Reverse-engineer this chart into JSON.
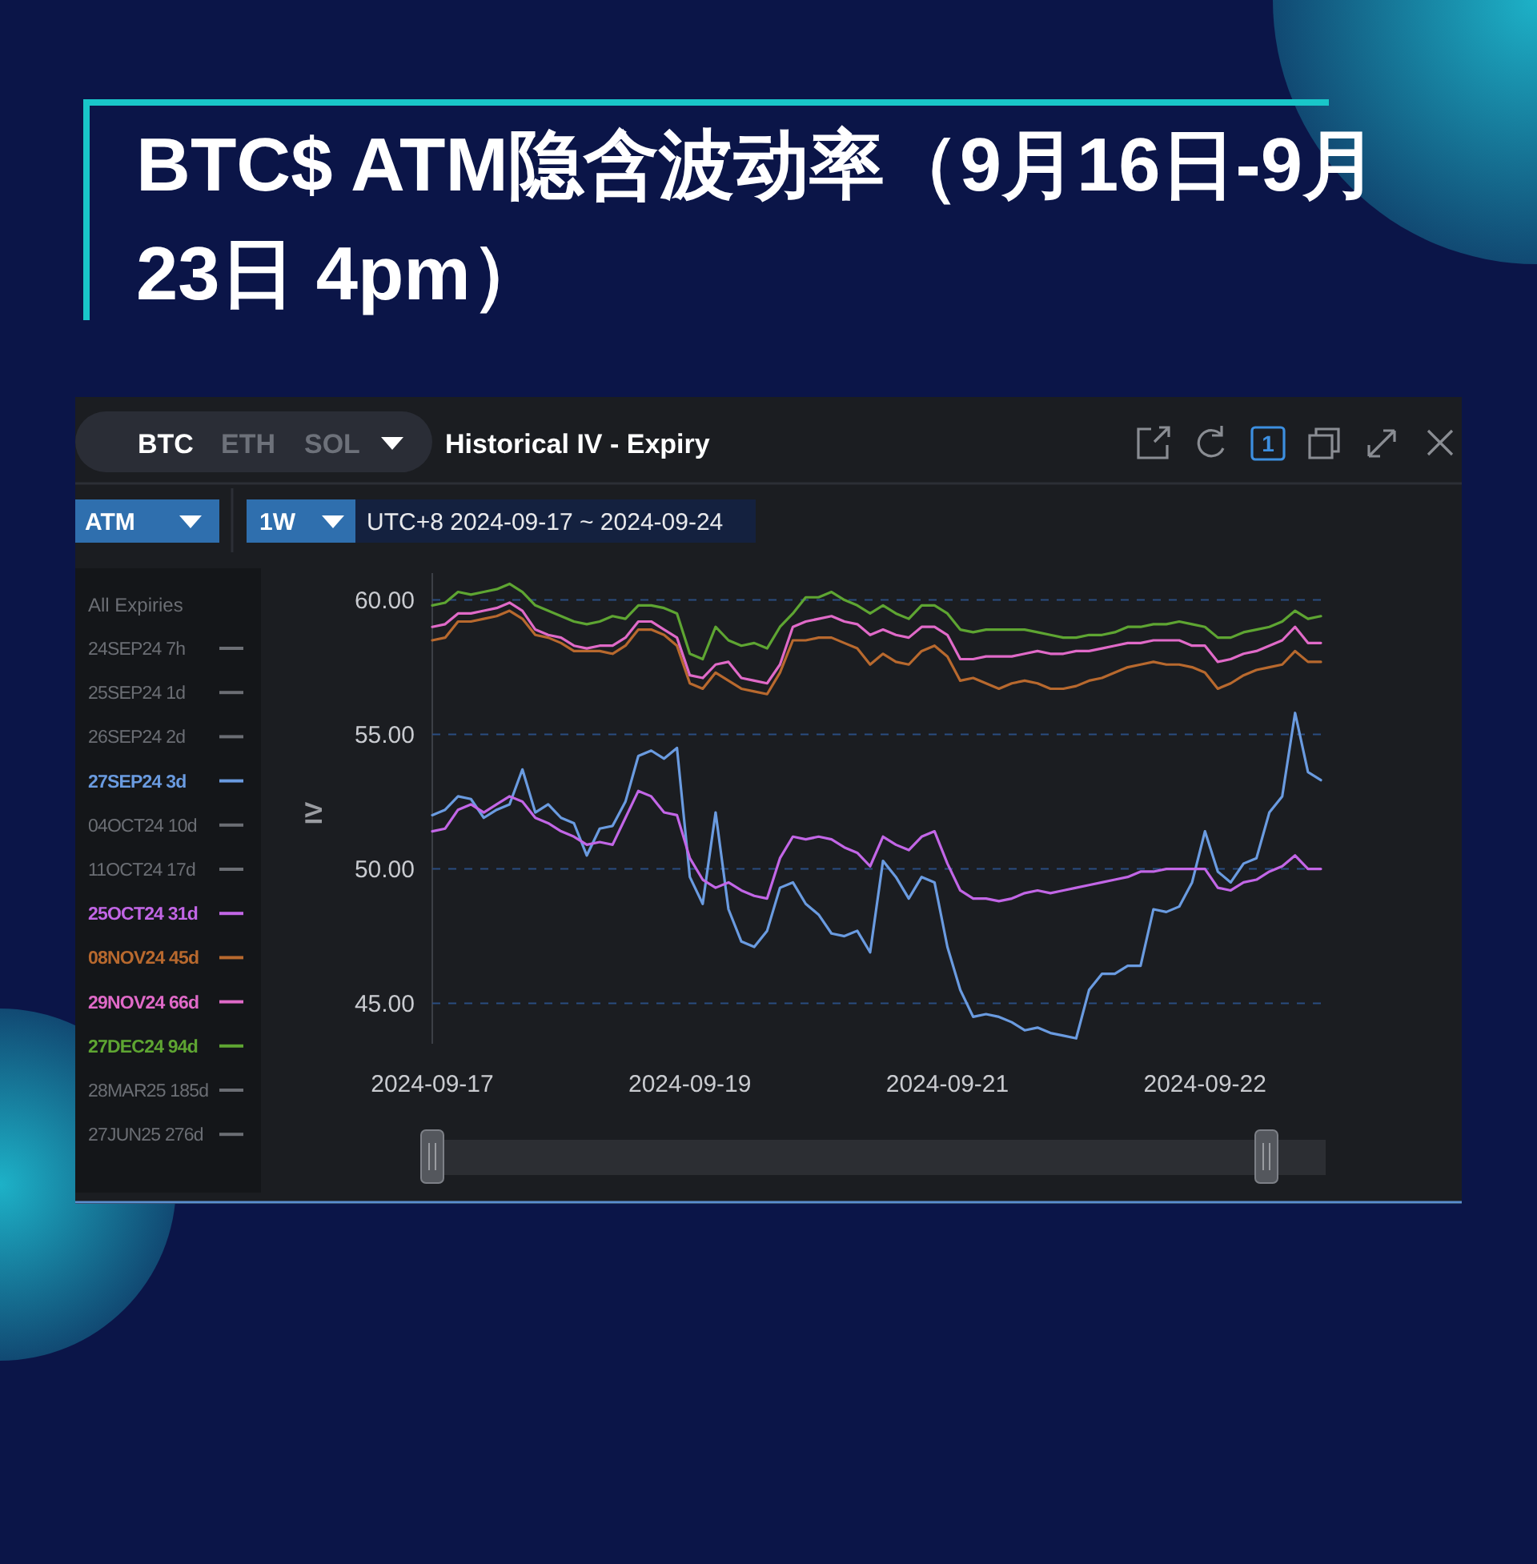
{
  "chart_data": {
    "type": "line",
    "title": "BTC$ ATM隐含波动率（9月16日-9月23日 4pm）",
    "ylabel": "IV",
    "legend_title": "All Expiries",
    "legend": "left",
    "grid": "y",
    "categories": [
      "2024-09-17",
      null,
      null,
      null,
      null,
      null,
      null,
      null,
      null,
      null,
      null,
      null,
      null,
      null,
      null,
      null,
      null,
      null,
      null,
      null,
      "2024-09-19",
      null,
      null,
      null,
      null,
      null,
      null,
      null,
      null,
      null,
      null,
      null,
      null,
      null,
      null,
      null,
      null,
      null,
      null,
      null,
      "2024-09-21",
      null,
      null,
      null,
      null,
      null,
      null,
      null,
      null,
      null,
      null,
      null,
      null,
      null,
      null,
      null,
      null,
      null,
      null,
      null,
      "2024-09-22",
      null,
      null,
      null,
      null,
      null,
      null,
      null,
      null,
      null
    ],
    "ylim": [
      43.5,
      61
    ],
    "yticks": [
      {
        "value": 45,
        "label": "45.00"
      },
      {
        "value": 50,
        "label": "50.00"
      },
      {
        "value": 55,
        "label": "55.00"
      },
      {
        "value": 60,
        "label": "60.00"
      }
    ],
    "annotations": [
      "BTC",
      "ETH",
      "SOL",
      "Historical IV - Expiry",
      "1",
      "ATM",
      "1W",
      "UTC+8 2024-09-17 ~ 2024-09-24"
    ],
    "series": [
      {
        "name": "24SEP24 7h",
        "color": "#6b6e74",
        "values": [
          null,
          null,
          null,
          null,
          null,
          null,
          null,
          null,
          null,
          null,
          null,
          null,
          null,
          null,
          null,
          null,
          null,
          null,
          null,
          null,
          null,
          null,
          null,
          null,
          null,
          null,
          null,
          null,
          null,
          null,
          null,
          null,
          null,
          null,
          null,
          null,
          null,
          null,
          null,
          null,
          null,
          null,
          null,
          null,
          null,
          null,
          null,
          null,
          null,
          null,
          null,
          null,
          null,
          null,
          null,
          null,
          null,
          null,
          null,
          null,
          null,
          null,
          null,
          null,
          null,
          null,
          null,
          null,
          null,
          null
        ]
      },
      {
        "name": "25SEP24 1d",
        "color": "#6b6e74",
        "values": [
          null,
          null,
          null,
          null,
          null,
          null,
          null,
          null,
          null,
          null,
          null,
          null,
          null,
          null,
          null,
          null,
          null,
          null,
          null,
          null,
          null,
          null,
          null,
          null,
          null,
          null,
          null,
          null,
          null,
          null,
          null,
          null,
          null,
          null,
          null,
          null,
          null,
          null,
          null,
          null,
          null,
          null,
          null,
          null,
          null,
          null,
          null,
          null,
          null,
          null,
          null,
          null,
          null,
          null,
          null,
          null,
          null,
          null,
          null,
          null,
          null,
          null,
          null,
          null,
          null,
          null,
          null,
          null,
          null,
          null
        ]
      },
      {
        "name": "26SEP24 2d",
        "color": "#6b6e74",
        "values": [
          null,
          null,
          null,
          null,
          null,
          null,
          null,
          null,
          null,
          null,
          null,
          null,
          null,
          null,
          null,
          null,
          null,
          null,
          null,
          null,
          null,
          null,
          null,
          null,
          null,
          null,
          null,
          null,
          null,
          null,
          null,
          null,
          null,
          null,
          null,
          null,
          null,
          null,
          null,
          null,
          null,
          null,
          null,
          null,
          null,
          null,
          null,
          null,
          null,
          null,
          null,
          null,
          null,
          null,
          null,
          null,
          null,
          null,
          null,
          null,
          null,
          null,
          null,
          null,
          null,
          null,
          null,
          null,
          null,
          null
        ]
      },
      {
        "name": "27SEP24 3d",
        "color": "#6a9be0",
        "values": [
          52.0,
          52.2,
          52.7,
          52.6,
          51.9,
          52.2,
          52.4,
          53.7,
          52.1,
          52.4,
          51.9,
          51.7,
          50.5,
          51.5,
          51.6,
          52.5,
          54.2,
          54.4,
          54.1,
          54.5,
          49.7,
          48.7,
          52.1,
          48.5,
          47.3,
          47.1,
          47.7,
          49.3,
          49.5,
          48.7,
          48.3,
          47.6,
          47.5,
          47.7,
          46.9,
          50.3,
          49.7,
          48.9,
          49.7,
          49.5,
          47.1,
          45.5,
          44.5,
          44.6,
          44.5,
          44.3,
          44.0,
          44.1,
          43.9,
          43.8,
          43.7,
          45.5,
          46.1,
          46.1,
          46.4,
          46.4,
          48.5,
          48.4,
          48.6,
          49.5,
          51.4,
          49.9,
          49.5,
          50.2,
          50.4,
          52.1,
          52.7,
          55.8,
          53.6,
          53.3
        ]
      },
      {
        "name": "04OCT24 10d",
        "color": "#6b6e74",
        "values": [
          null,
          null,
          null,
          null,
          null,
          null,
          null,
          null,
          null,
          null,
          null,
          null,
          null,
          null,
          null,
          null,
          null,
          null,
          null,
          null,
          null,
          null,
          null,
          null,
          null,
          null,
          null,
          null,
          null,
          null,
          null,
          null,
          null,
          null,
          null,
          null,
          null,
          null,
          null,
          null,
          null,
          null,
          null,
          null,
          null,
          null,
          null,
          null,
          null,
          null,
          null,
          null,
          null,
          null,
          null,
          null,
          null,
          null,
          null,
          null,
          null,
          null,
          null,
          null,
          null,
          null,
          null,
          null,
          null,
          null
        ]
      },
      {
        "name": "11OCT24 17d",
        "color": "#6b6e74",
        "values": [
          null,
          null,
          null,
          null,
          null,
          null,
          null,
          null,
          null,
          null,
          null,
          null,
          null,
          null,
          null,
          null,
          null,
          null,
          null,
          null,
          null,
          null,
          null,
          null,
          null,
          null,
          null,
          null,
          null,
          null,
          null,
          null,
          null,
          null,
          null,
          null,
          null,
          null,
          null,
          null,
          null,
          null,
          null,
          null,
          null,
          null,
          null,
          null,
          null,
          null,
          null,
          null,
          null,
          null,
          null,
          null,
          null,
          null,
          null,
          null,
          null,
          null,
          null,
          null,
          null,
          null,
          null,
          null,
          null,
          null
        ]
      },
      {
        "name": "25OCT24 31d",
        "color": "#c266e6",
        "values": [
          51.4,
          51.5,
          52.2,
          52.4,
          52.1,
          52.4,
          52.7,
          52.5,
          51.9,
          51.7,
          51.4,
          51.2,
          50.9,
          51.0,
          50.9,
          51.9,
          52.9,
          52.7,
          52.1,
          52.0,
          50.4,
          49.6,
          49.3,
          49.5,
          49.2,
          49.0,
          48.9,
          50.4,
          51.2,
          51.1,
          51.2,
          51.1,
          50.8,
          50.6,
          50.1,
          51.2,
          50.9,
          50.7,
          51.2,
          51.4,
          50.2,
          49.2,
          48.9,
          48.9,
          48.8,
          48.9,
          49.1,
          49.2,
          49.1,
          49.2,
          49.3,
          49.4,
          49.5,
          49.6,
          49.7,
          49.9,
          49.9,
          50.0,
          50.0,
          50.0,
          50.0,
          49.3,
          49.2,
          49.5,
          49.6,
          49.9,
          50.1,
          50.5,
          50.0,
          50.0
        ]
      },
      {
        "name": "08NOV24 45d",
        "color": "#b8692e",
        "values": [
          58.5,
          58.6,
          59.2,
          59.2,
          59.3,
          59.4,
          59.6,
          59.3,
          58.7,
          58.6,
          58.4,
          58.1,
          58.1,
          58.1,
          58.0,
          58.3,
          58.9,
          58.9,
          58.7,
          58.3,
          56.9,
          56.7,
          57.3,
          57.0,
          56.7,
          56.6,
          56.5,
          57.3,
          58.5,
          58.5,
          58.6,
          58.6,
          58.4,
          58.2,
          57.6,
          58.0,
          57.7,
          57.6,
          58.1,
          58.3,
          57.9,
          57.0,
          57.1,
          56.9,
          56.7,
          56.9,
          57.0,
          56.9,
          56.7,
          56.7,
          56.8,
          57.0,
          57.1,
          57.3,
          57.5,
          57.6,
          57.7,
          57.6,
          57.6,
          57.5,
          57.3,
          56.7,
          56.9,
          57.2,
          57.4,
          57.5,
          57.6,
          58.1,
          57.7,
          57.7
        ]
      },
      {
        "name": "29NOV24 66d",
        "color": "#e06ac8",
        "values": [
          59.0,
          59.1,
          59.5,
          59.5,
          59.6,
          59.7,
          59.9,
          59.6,
          58.9,
          58.7,
          58.6,
          58.3,
          58.2,
          58.3,
          58.3,
          58.6,
          59.2,
          59.2,
          58.9,
          58.6,
          57.2,
          57.1,
          57.6,
          57.7,
          57.1,
          57.0,
          56.9,
          57.6,
          59.0,
          59.2,
          59.3,
          59.4,
          59.2,
          59.1,
          58.7,
          58.9,
          58.7,
          58.6,
          59.0,
          59.0,
          58.7,
          57.8,
          57.8,
          57.9,
          57.9,
          57.9,
          58.0,
          58.1,
          58.0,
          58.0,
          58.1,
          58.1,
          58.2,
          58.3,
          58.4,
          58.4,
          58.5,
          58.5,
          58.5,
          58.3,
          58.3,
          57.7,
          57.8,
          58.0,
          58.1,
          58.3,
          58.5,
          59.0,
          58.4,
          58.4
        ]
      },
      {
        "name": "27DEC24 94d",
        "color": "#5ea532",
        "values": [
          59.8,
          59.9,
          60.3,
          60.2,
          60.3,
          60.4,
          60.6,
          60.3,
          59.8,
          59.6,
          59.4,
          59.2,
          59.1,
          59.2,
          59.4,
          59.3,
          59.8,
          59.8,
          59.7,
          59.5,
          58.0,
          57.8,
          59.0,
          58.5,
          58.3,
          58.4,
          58.2,
          59.0,
          59.5,
          60.1,
          60.1,
          60.3,
          60.0,
          59.8,
          59.5,
          59.8,
          59.5,
          59.3,
          59.8,
          59.8,
          59.5,
          58.9,
          58.8,
          58.9,
          58.9,
          58.9,
          58.9,
          58.8,
          58.7,
          58.6,
          58.6,
          58.7,
          58.7,
          58.8,
          59.0,
          59.0,
          59.1,
          59.1,
          59.2,
          59.1,
          59.0,
          58.6,
          58.6,
          58.8,
          58.9,
          59.0,
          59.2,
          59.6,
          59.3,
          59.4
        ]
      },
      {
        "name": "28MAR25 185d",
        "color": "#6b6e74",
        "values": [
          null,
          null,
          null,
          null,
          null,
          null,
          null,
          null,
          null,
          null,
          null,
          null,
          null,
          null,
          null,
          null,
          null,
          null,
          null,
          null,
          null,
          null,
          null,
          null,
          null,
          null,
          null,
          null,
          null,
          null,
          null,
          null,
          null,
          null,
          null,
          null,
          null,
          null,
          null,
          null,
          null,
          null,
          null,
          null,
          null,
          null,
          null,
          null,
          null,
          null,
          null,
          null,
          null,
          null,
          null,
          null,
          null,
          null,
          null,
          null,
          null,
          null,
          null,
          null,
          null,
          null,
          null,
          null,
          null,
          null
        ]
      },
      {
        "name": "27JUN25 276d",
        "color": "#6b6e74",
        "values": [
          null,
          null,
          null,
          null,
          null,
          null,
          null,
          null,
          null,
          null,
          null,
          null,
          null,
          null,
          null,
          null,
          null,
          null,
          null,
          null,
          null,
          null,
          null,
          null,
          null,
          null,
          null,
          null,
          null,
          null,
          null,
          null,
          null,
          null,
          null,
          null,
          null,
          null,
          null,
          null,
          null,
          null,
          null,
          null,
          null,
          null,
          null,
          null,
          null,
          null,
          null,
          null,
          null,
          null,
          null,
          null,
          null,
          null,
          null,
          null,
          null,
          null,
          null,
          null,
          null,
          null,
          null,
          null,
          null,
          null
        ]
      }
    ]
  }
}
